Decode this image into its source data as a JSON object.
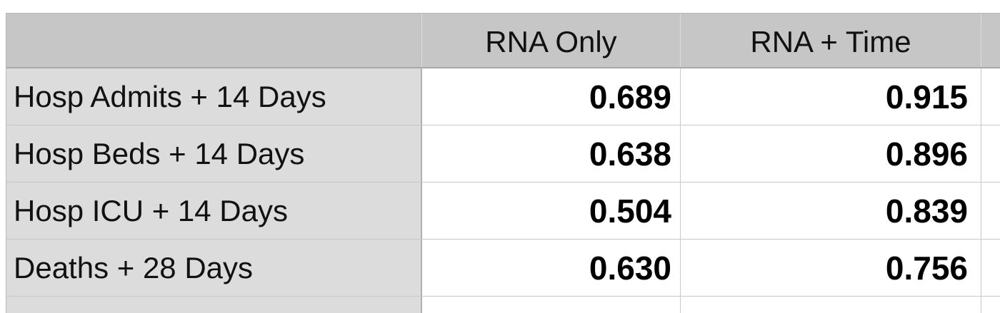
{
  "table": {
    "columns": [
      "",
      "RNA Only",
      "RNA + Time",
      ""
    ],
    "rows": [
      {
        "label": "Hosp Admits + 14 Days",
        "rna_only": "0.689",
        "rna_time": "0.915"
      },
      {
        "label": "Hosp Beds + 14 Days",
        "rna_only": "0.638",
        "rna_time": "0.896"
      },
      {
        "label": "Hosp ICU + 14 Days",
        "rna_only": "0.504",
        "rna_time": "0.839"
      },
      {
        "label": "Deaths + 28 Days",
        "rna_only": "0.630",
        "rna_time": "0.756"
      }
    ]
  },
  "colors": {
    "header_bg": "#c5c6c5",
    "row_label_bg": "#dcdcdc",
    "cell_bg": "#ffffff",
    "grid": "#c8c8c8"
  }
}
